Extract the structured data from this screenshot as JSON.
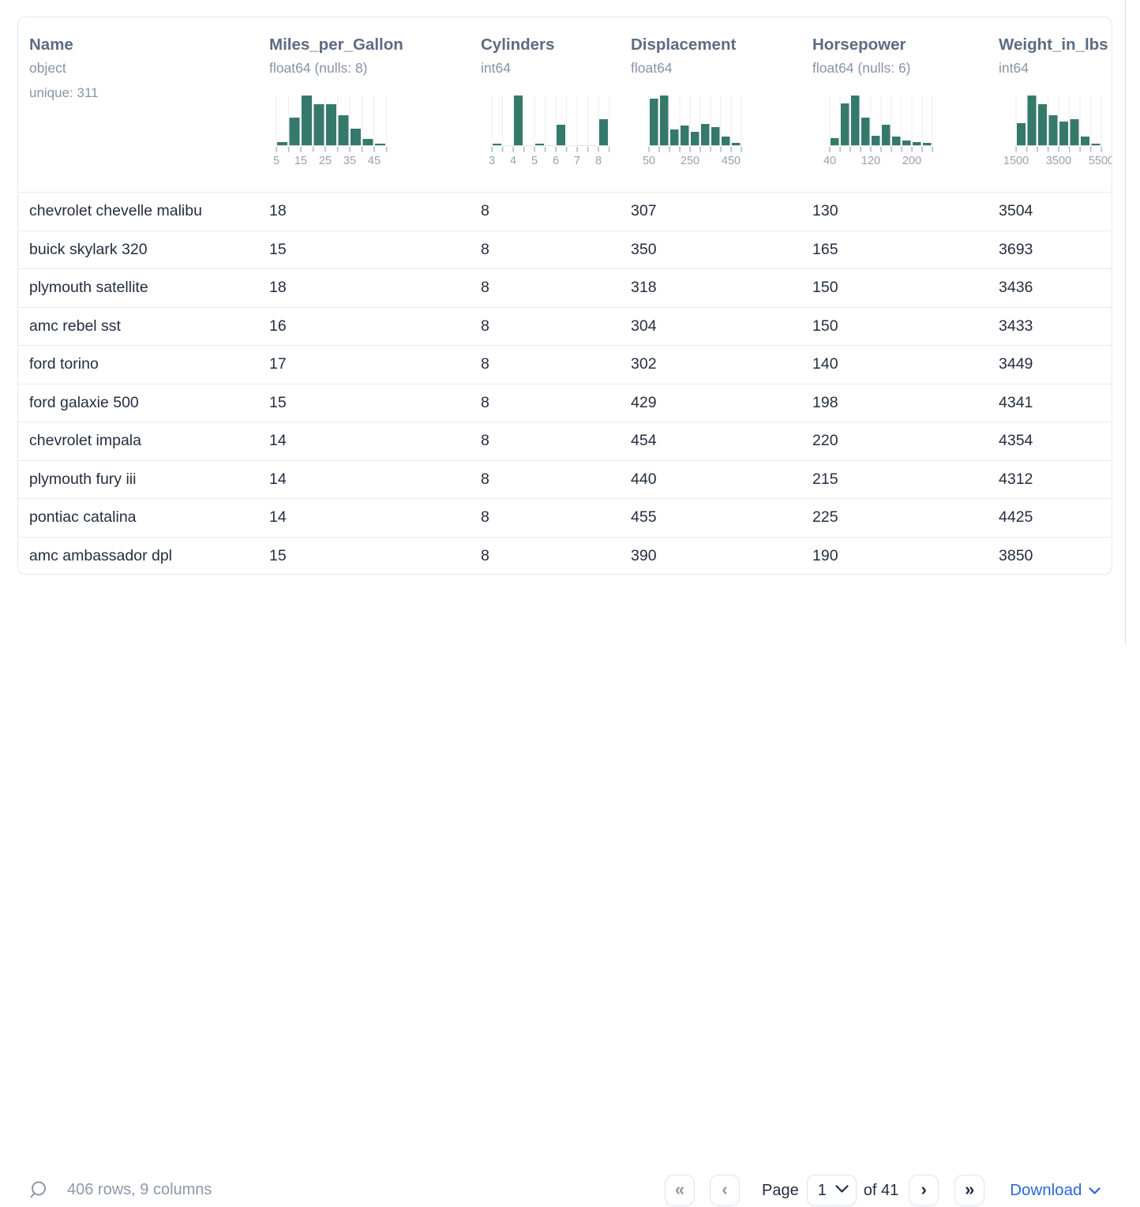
{
  "table": {
    "columns": [
      {
        "name": "Name",
        "type": "object",
        "extra": "unique: 311"
      },
      {
        "name": "Miles_per_Gallon",
        "type": "float64 (nulls: 8)",
        "extra": ""
      },
      {
        "name": "Cylinders",
        "type": "int64",
        "extra": ""
      },
      {
        "name": "Displacement",
        "type": "float64",
        "extra": ""
      },
      {
        "name": "Horsepower",
        "type": "float64 (nulls: 6)",
        "extra": ""
      },
      {
        "name": "Weight_in_lbs",
        "type": "int64",
        "extra": ""
      }
    ],
    "rows": [
      [
        "chevrolet chevelle malibu",
        "18",
        "8",
        "307",
        "130",
        "3504"
      ],
      [
        "buick skylark 320",
        "15",
        "8",
        "350",
        "165",
        "3693"
      ],
      [
        "plymouth satellite",
        "18",
        "8",
        "318",
        "150",
        "3436"
      ],
      [
        "amc rebel sst",
        "16",
        "8",
        "304",
        "150",
        "3433"
      ],
      [
        "ford torino",
        "17",
        "8",
        "302",
        "140",
        "3449"
      ],
      [
        "ford galaxie 500",
        "15",
        "8",
        "429",
        "198",
        "4341"
      ],
      [
        "chevrolet impala",
        "14",
        "8",
        "454",
        "220",
        "4354"
      ],
      [
        "plymouth fury iii",
        "14",
        "8",
        "440",
        "215",
        "4312"
      ],
      [
        "pontiac catalina",
        "14",
        "8",
        "455",
        "225",
        "4425"
      ],
      [
        "amc ambassador dpl",
        "15",
        "8",
        "390",
        "190",
        "3850"
      ]
    ]
  },
  "chart_data": [
    {
      "type": "bar",
      "column": "Miles_per_Gallon",
      "bin_edges": [
        5,
        10,
        15,
        20,
        25,
        30,
        35,
        40,
        45,
        50
      ],
      "rel_heights": [
        6,
        56,
        100,
        82,
        82,
        61,
        33,
        13,
        2
      ],
      "tick_labels": [
        {
          "edge_index": 0,
          "label": "5"
        },
        {
          "edge_index": 2,
          "label": "15"
        },
        {
          "edge_index": 4,
          "label": "25"
        },
        {
          "edge_index": 6,
          "label": "35"
        },
        {
          "edge_index": 8,
          "label": "45"
        }
      ]
    },
    {
      "type": "bar",
      "column": "Cylinders",
      "bin_edges": [
        3,
        3.5,
        4,
        4.5,
        5,
        5.5,
        6,
        6.5,
        7,
        7.5,
        8,
        8.5
      ],
      "rel_heights": [
        3,
        0,
        100,
        0,
        2,
        0,
        41,
        0,
        0,
        0,
        52
      ],
      "tick_labels": [
        {
          "edge_index": 0,
          "label": "3"
        },
        {
          "edge_index": 2,
          "label": "4"
        },
        {
          "edge_index": 4,
          "label": "5"
        },
        {
          "edge_index": 6,
          "label": "6"
        },
        {
          "edge_index": 8,
          "label": "7"
        },
        {
          "edge_index": 10,
          "label": "8"
        }
      ]
    },
    {
      "type": "bar",
      "column": "Displacement",
      "bin_edges": [
        50,
        100,
        150,
        200,
        250,
        300,
        350,
        400,
        450,
        500
      ],
      "rel_heights": [
        94,
        100,
        32,
        39,
        27,
        43,
        36,
        17,
        4
      ],
      "tick_labels": [
        {
          "edge_index": 0,
          "label": "50"
        },
        {
          "edge_index": 4,
          "label": "250"
        },
        {
          "edge_index": 8,
          "label": "450"
        }
      ]
    },
    {
      "type": "bar",
      "column": "Horsepower",
      "bin_edges": [
        40,
        60,
        80,
        100,
        120,
        140,
        160,
        180,
        200,
        220,
        240
      ],
      "rel_heights": [
        15,
        84,
        100,
        56,
        19,
        42,
        18,
        10,
        6,
        5
      ],
      "tick_labels": [
        {
          "edge_index": 0,
          "label": "40"
        },
        {
          "edge_index": 4,
          "label": "120"
        },
        {
          "edge_index": 8,
          "label": "200"
        }
      ]
    },
    {
      "type": "bar",
      "column": "Weight_in_lbs",
      "bin_edges": [
        1500,
        2000,
        2500,
        3000,
        3500,
        4000,
        4500,
        5000,
        5500
      ],
      "rel_heights": [
        45,
        100,
        83,
        60,
        48,
        52,
        18,
        3
      ],
      "tick_labels": [
        {
          "edge_index": 0,
          "label": "1500"
        },
        {
          "edge_index": 4,
          "label": "3500"
        },
        {
          "edge_index": 8,
          "label": "5500"
        }
      ]
    }
  ],
  "footer": {
    "row_summary": "406 rows, 9 columns",
    "page_label": "Page",
    "page_value": "1",
    "total_label": "of 41",
    "download_label": "Download",
    "icons": {
      "first": "«",
      "prev": "‹",
      "next": "›",
      "last": "»"
    }
  },
  "colors": {
    "histogram_bar": "#35796b",
    "link_blue": "#2b66d9",
    "header_text": "#5d6c82",
    "row_text": "#242e40"
  }
}
